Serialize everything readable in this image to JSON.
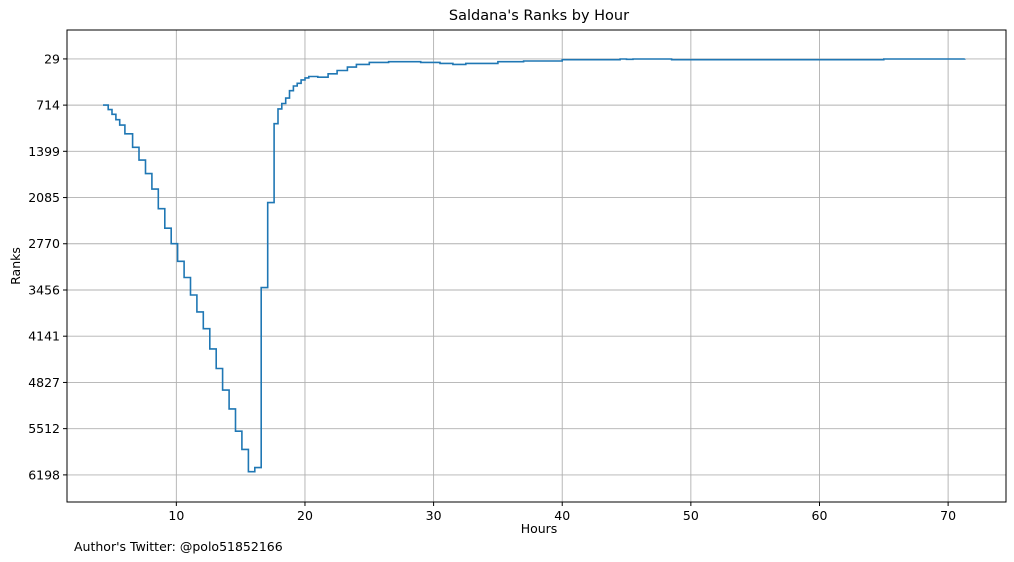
{
  "chart_data": {
    "type": "line",
    "step": true,
    "title": "Saldana's Ranks by Hour",
    "xlabel": "Hours",
    "ylabel": "Ranks",
    "xlim": [
      1.5,
      74.5
    ],
    "ylim": [
      6600,
      -400
    ],
    "y_inverted": true,
    "grid": true,
    "line_color": "#1f77b4",
    "x_ticks": [
      10,
      20,
      30,
      40,
      50,
      60,
      70
    ],
    "y_ticks": [
      29,
      714,
      1399,
      2085,
      2770,
      3456,
      4141,
      4827,
      5512,
      6198
    ],
    "series": [
      {
        "x": [
          4.3,
          4.7,
          5.0,
          5.3,
          5.6,
          6.0,
          6.6,
          7.1,
          7.6,
          8.1,
          8.6,
          9.1,
          9.6,
          10.1,
          10.6,
          11.1,
          11.6,
          12.1,
          12.6,
          13.1,
          13.6,
          14.1,
          14.6,
          15.1,
          15.6,
          16.1,
          16.6,
          17.1,
          17.6,
          17.9,
          18.2,
          18.5,
          18.8,
          19.1,
          19.4,
          19.7,
          20.0,
          20.3,
          21.0,
          21.8,
          22.5,
          23.3,
          24.0,
          25.0,
          26.5,
          29.0,
          30.5,
          31.5,
          32.5,
          35.0,
          37.0,
          40.0,
          44.5,
          45.0,
          45.5,
          48.5,
          55.0,
          60.8,
          65.0,
          71.3
        ],
        "values": [
          714,
          780,
          850,
          930,
          1010,
          1140,
          1340,
          1530,
          1730,
          1960,
          2250,
          2540,
          2770,
          3030,
          3270,
          3530,
          3780,
          4030,
          4330,
          4620,
          4940,
          5220,
          5550,
          5820,
          6150,
          6090,
          3420,
          2160,
          990,
          770,
          690,
          610,
          500,
          430,
          390,
          340,
          310,
          290,
          300,
          250,
          200,
          150,
          110,
          80,
          70,
          80,
          95,
          110,
          95,
          70,
          60,
          40,
          30,
          35,
          30,
          40,
          40,
          40,
          30,
          29
        ]
      }
    ],
    "footer": "Author's Twitter: @polo51852166"
  }
}
